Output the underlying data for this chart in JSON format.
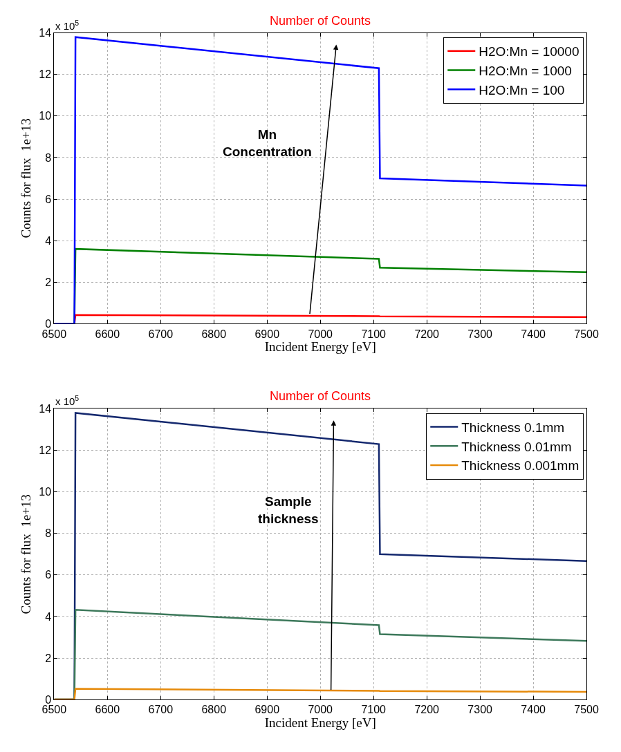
{
  "chart_data": [
    {
      "type": "line",
      "title": "Number of Counts",
      "xlabel": "Incident Energy [eV]",
      "ylabel": "Counts for flux  1e+13",
      "annotations": [
        "x 10$^{5}$",
        "Mn\nConcentration"
      ],
      "x": [
        6500,
        6538,
        6540,
        7110,
        7112,
        7500
      ],
      "series": [
        {
          "name": "H2O:Mn = 10000",
          "color": "#ff0000",
          "values": [
            0,
            0,
            0.42,
            0.36,
            0.35,
            0.32
          ]
        },
        {
          "name": "H2O:Mn = 1000",
          "color": "#008000",
          "values": [
            0,
            0,
            3.6,
            3.12,
            2.7,
            2.48
          ]
        },
        {
          "name": "H2O:Mn = 100",
          "color": "#0000ff",
          "values": [
            0,
            0,
            13.8,
            12.3,
            7.0,
            6.65
          ]
        }
      ],
      "xlim": [
        6500,
        7500
      ],
      "xticks": [
        6500,
        6600,
        6700,
        6800,
        6900,
        7000,
        7100,
        7200,
        7300,
        7400,
        7500
      ],
      "ylim": [
        0,
        14
      ],
      "yticks": [
        0,
        2,
        4,
        6,
        8,
        10,
        12,
        14
      ],
      "grid": true,
      "legend": "top right",
      "marker": "none",
      "line_style": "solid"
    },
    {
      "type": "line",
      "title": "Number of Counts",
      "xlabel": "Incident Energy [eV]",
      "ylabel": "Counts for flux  1e+13",
      "annotations": [
        "x 10$^{5}$",
        "Sample\nthickness"
      ],
      "x": [
        6500,
        6538,
        6540,
        7110,
        7112,
        7500
      ],
      "series": [
        {
          "name": "Thickness 0.1mm",
          "color": "#14286e",
          "values": [
            0,
            0,
            13.8,
            12.3,
            7.0,
            6.67
          ]
        },
        {
          "name": "Thickness 0.01mm",
          "color": "#3c785a",
          "values": [
            0,
            0,
            4.32,
            3.58,
            3.15,
            2.82
          ]
        },
        {
          "name": "Thickness 0.001mm",
          "color": "#e68a0a",
          "values": [
            0,
            0,
            0.52,
            0.42,
            0.41,
            0.37
          ]
        }
      ],
      "xlim": [
        6500,
        7500
      ],
      "xticks": [
        6500,
        6600,
        6700,
        6800,
        6900,
        7000,
        7100,
        7200,
        7300,
        7400,
        7500
      ],
      "ylim": [
        0,
        14
      ],
      "yticks": [
        0,
        2,
        4,
        6,
        8,
        10,
        12,
        14
      ],
      "grid": true,
      "legend": "top right",
      "marker": "none",
      "line_style": "solid"
    }
  ]
}
